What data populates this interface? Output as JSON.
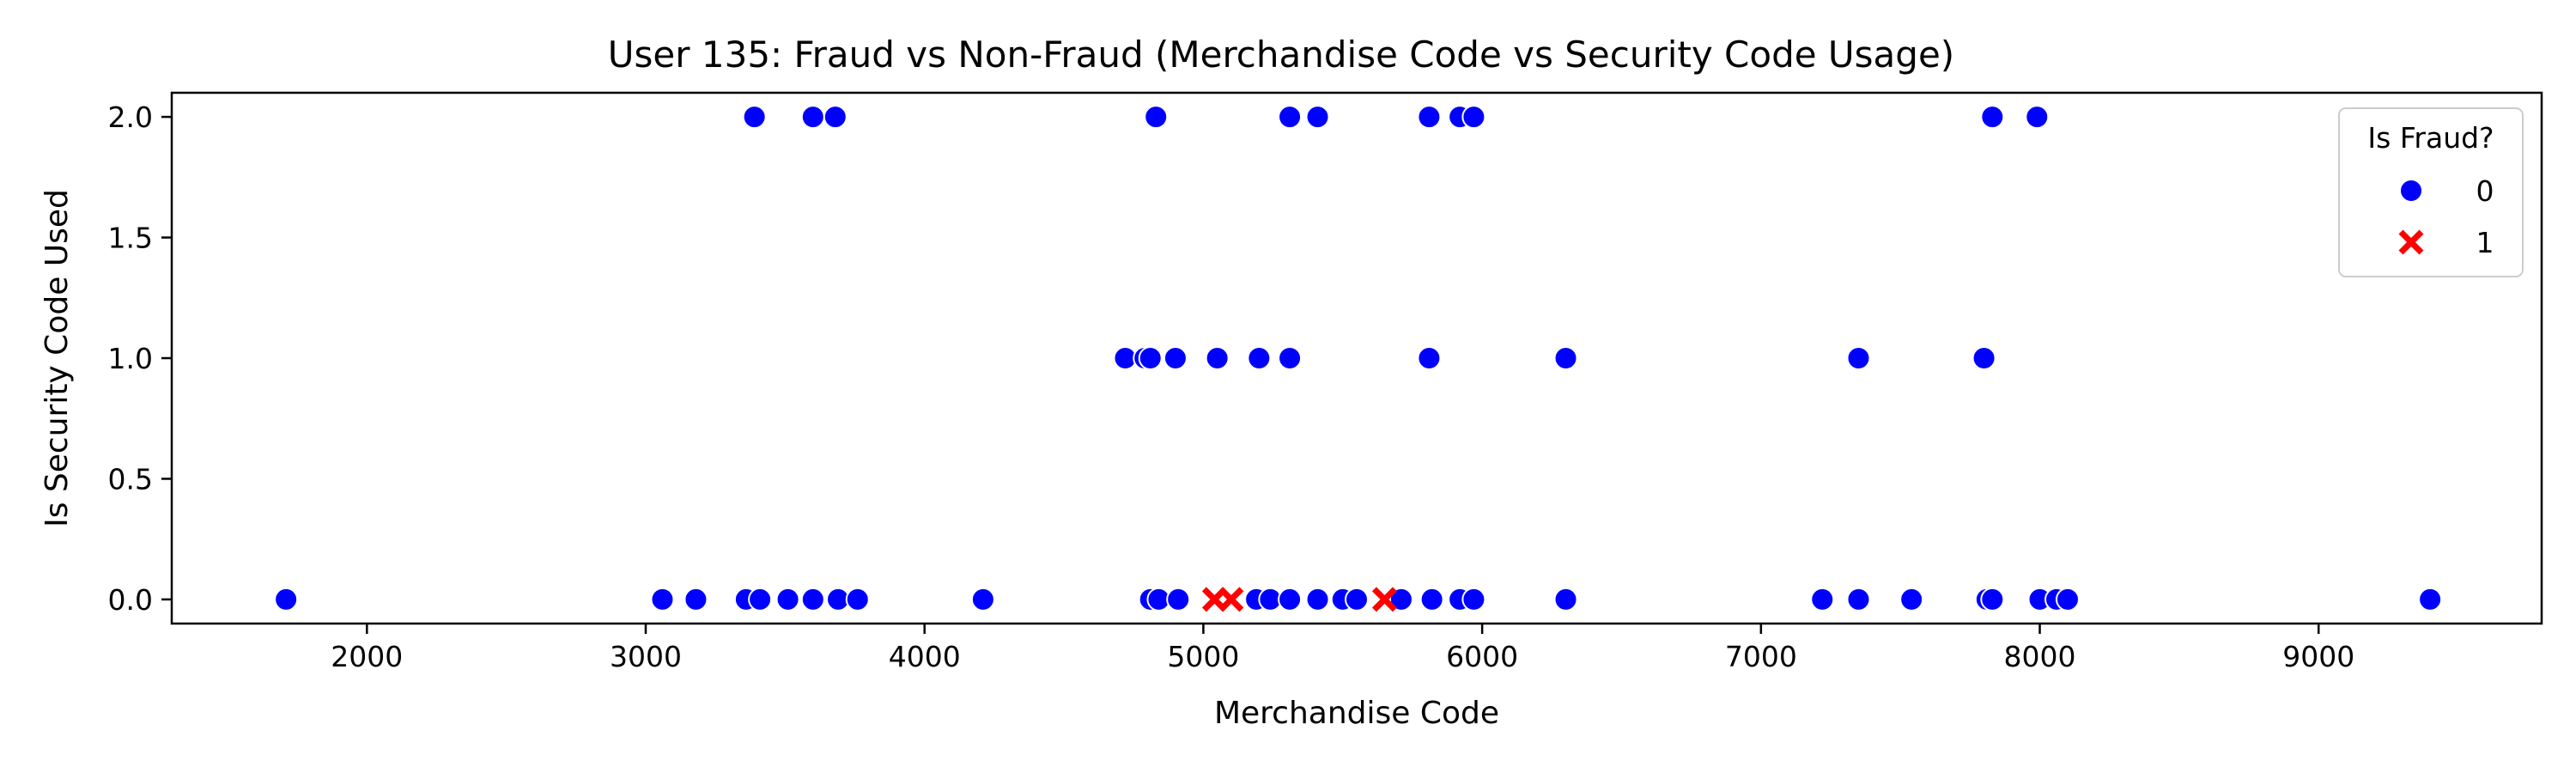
{
  "chart_data": {
    "type": "scatter",
    "title": "User 135: Fraud vs Non-Fraud (Merchandise Code vs Security Code Usage)",
    "xlabel": "Merchandise Code",
    "ylabel": "Is Security Code Used",
    "xlim": [
      1300,
      9800
    ],
    "ylim": [
      -0.1,
      2.1
    ],
    "xticks": [
      2000,
      3000,
      4000,
      5000,
      6000,
      7000,
      8000,
      9000
    ],
    "yticks": [
      0.0,
      0.5,
      1.0,
      1.5,
      2.0
    ],
    "grid": false,
    "legend": {
      "title": "Is Fraud?",
      "placement": "top-right",
      "entries": [
        {
          "label": "0",
          "marker": "circle",
          "color": "#0000ff"
        },
        {
          "label": "1",
          "marker": "x",
          "color": "#ff0000"
        }
      ]
    },
    "series": [
      {
        "name": "0",
        "marker": "circle",
        "color": "#0000ff",
        "points": [
          {
            "x": 3390,
            "y": 2
          },
          {
            "x": 3600,
            "y": 2
          },
          {
            "x": 3680,
            "y": 2
          },
          {
            "x": 4830,
            "y": 2
          },
          {
            "x": 5310,
            "y": 2
          },
          {
            "x": 5410,
            "y": 2
          },
          {
            "x": 5810,
            "y": 2
          },
          {
            "x": 5920,
            "y": 2
          },
          {
            "x": 5970,
            "y": 2
          },
          {
            "x": 7830,
            "y": 2
          },
          {
            "x": 7990,
            "y": 2
          },
          {
            "x": 4720,
            "y": 1
          },
          {
            "x": 4790,
            "y": 1
          },
          {
            "x": 4810,
            "y": 1
          },
          {
            "x": 4900,
            "y": 1
          },
          {
            "x": 5050,
            "y": 1
          },
          {
            "x": 5200,
            "y": 1
          },
          {
            "x": 5310,
            "y": 1
          },
          {
            "x": 5810,
            "y": 1
          },
          {
            "x": 6300,
            "y": 1
          },
          {
            "x": 7350,
            "y": 1
          },
          {
            "x": 7800,
            "y": 1
          },
          {
            "x": 1710,
            "y": 0
          },
          {
            "x": 3060,
            "y": 0
          },
          {
            "x": 3180,
            "y": 0
          },
          {
            "x": 3360,
            "y": 0
          },
          {
            "x": 3410,
            "y": 0
          },
          {
            "x": 3510,
            "y": 0
          },
          {
            "x": 3600,
            "y": 0
          },
          {
            "x": 3690,
            "y": 0
          },
          {
            "x": 3760,
            "y": 0
          },
          {
            "x": 4210,
            "y": 0
          },
          {
            "x": 4810,
            "y": 0
          },
          {
            "x": 4840,
            "y": 0
          },
          {
            "x": 4910,
            "y": 0
          },
          {
            "x": 5190,
            "y": 0
          },
          {
            "x": 5240,
            "y": 0
          },
          {
            "x": 5310,
            "y": 0
          },
          {
            "x": 5410,
            "y": 0
          },
          {
            "x": 5500,
            "y": 0
          },
          {
            "x": 5550,
            "y": 0
          },
          {
            "x": 5710,
            "y": 0
          },
          {
            "x": 5820,
            "y": 0
          },
          {
            "x": 5920,
            "y": 0
          },
          {
            "x": 5970,
            "y": 0
          },
          {
            "x": 6300,
            "y": 0
          },
          {
            "x": 7220,
            "y": 0
          },
          {
            "x": 7350,
            "y": 0
          },
          {
            "x": 7540,
            "y": 0
          },
          {
            "x": 7810,
            "y": 0
          },
          {
            "x": 7830,
            "y": 0
          },
          {
            "x": 8000,
            "y": 0
          },
          {
            "x": 8060,
            "y": 0
          },
          {
            "x": 8100,
            "y": 0
          },
          {
            "x": 9400,
            "y": 0
          }
        ]
      },
      {
        "name": "1",
        "marker": "x",
        "color": "#ff0000",
        "points": [
          {
            "x": 5040,
            "y": 0
          },
          {
            "x": 5100,
            "y": 0
          },
          {
            "x": 5650,
            "y": 0
          }
        ]
      }
    ]
  }
}
